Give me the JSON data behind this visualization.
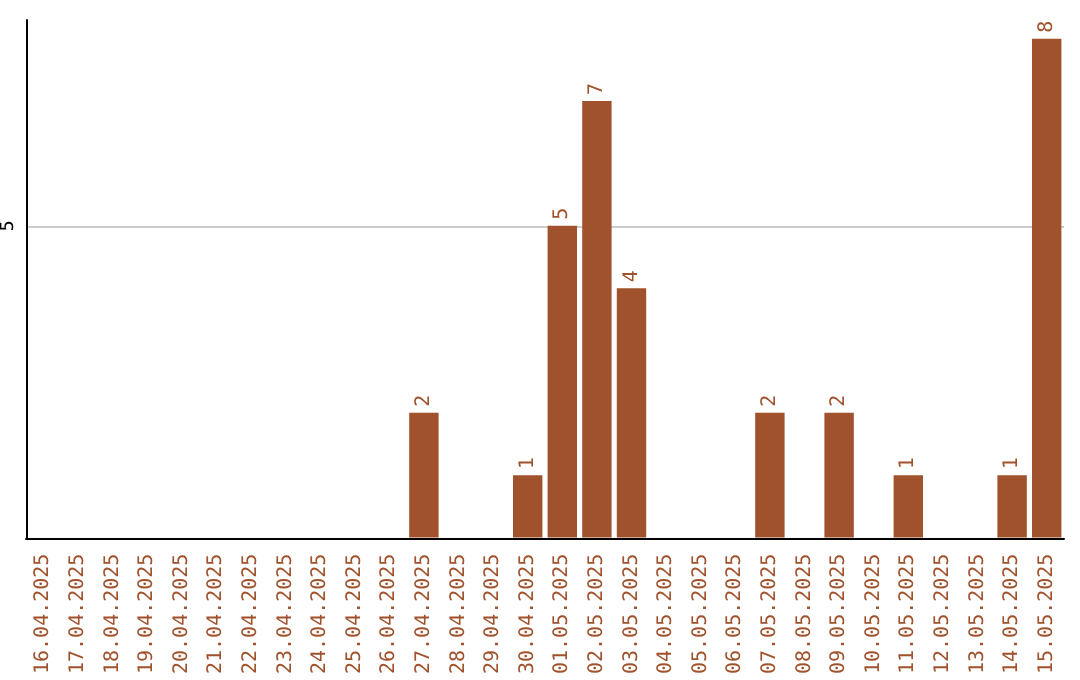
{
  "chart_data": {
    "type": "bar",
    "categories": [
      "16.04.2025",
      "17.04.2025",
      "18.04.2025",
      "19.04.2025",
      "20.04.2025",
      "21.04.2025",
      "22.04.2025",
      "23.04.2025",
      "24.04.2025",
      "25.04.2025",
      "26.04.2025",
      "27.04.2025",
      "28.04.2025",
      "29.04.2025",
      "30.04.2025",
      "01.05.2025",
      "02.05.2025",
      "03.05.2025",
      "04.05.2025",
      "05.05.2025",
      "06.05.2025",
      "07.05.2025",
      "08.05.2025",
      "09.05.2025",
      "10.05.2025",
      "11.05.2025",
      "12.05.2025",
      "13.05.2025",
      "14.05.2025",
      "15.05.2025"
    ],
    "values": [
      0,
      0,
      0,
      0,
      0,
      0,
      0,
      0,
      0,
      0,
      0,
      2,
      0,
      0,
      1,
      5,
      7,
      4,
      0,
      0,
      0,
      2,
      0,
      2,
      0,
      1,
      0,
      0,
      1,
      8
    ],
    "value_labels": [
      null,
      null,
      null,
      null,
      null,
      null,
      null,
      null,
      null,
      null,
      null,
      "2",
      null,
      null,
      "1",
      "5",
      "7",
      "4",
      null,
      null,
      null,
      "2",
      null,
      "2",
      null,
      "1",
      null,
      null,
      "1",
      "8"
    ],
    "color": "#a0522d",
    "ylim": [
      0,
      8.3
    ],
    "yticks": [
      5
    ],
    "grid": "y"
  }
}
